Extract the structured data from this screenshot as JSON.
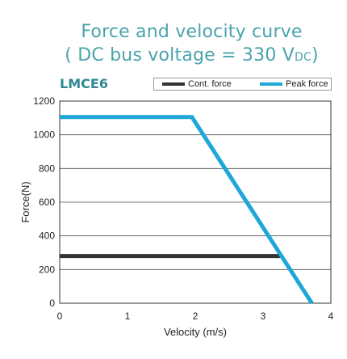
{
  "chart_data": {
    "type": "line",
    "title": "Force and velocity curve",
    "subtitle_prefix": "( DC bus voltage = 330 V",
    "subtitle_sub": "DC",
    "subtitle_suffix": ")",
    "model_label": "LMCE6",
    "xlabel": "Velocity (m/s)",
    "ylabel": "Force(N)",
    "xlim": [
      0,
      4
    ],
    "ylim": [
      0,
      1200
    ],
    "x_ticks": [
      "0",
      "1",
      "2",
      "3",
      "4"
    ],
    "y_ticks": [
      "0",
      "200",
      "400",
      "600",
      "800",
      "1000",
      "1200"
    ],
    "grid": "horizontal",
    "legend_position": "top-right",
    "series": [
      {
        "name": "Cont. force",
        "color": "#333333",
        "x": [
          0,
          3.26
        ],
        "y": [
          280,
          280
        ]
      },
      {
        "name": "Peak force",
        "color": "#1ea7d8",
        "x": [
          0,
          1.95,
          3.72
        ],
        "y": [
          1105,
          1105,
          0
        ]
      }
    ]
  }
}
